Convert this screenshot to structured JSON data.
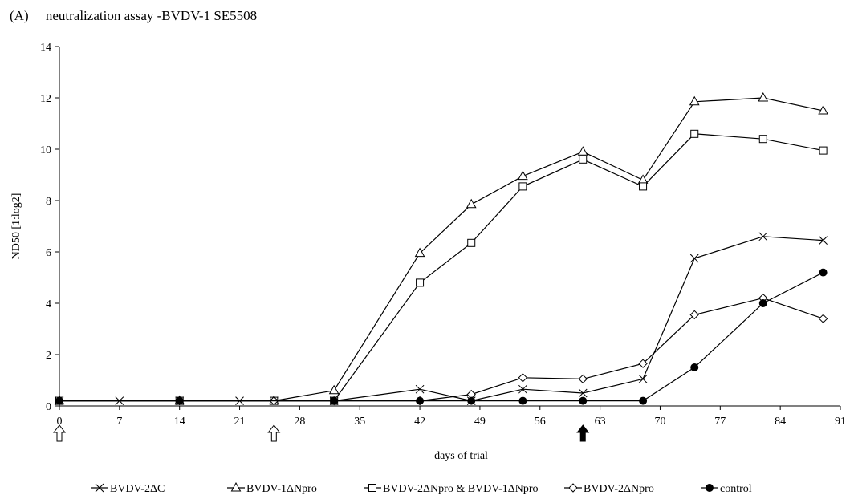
{
  "chart_data": {
    "type": "line",
    "panel_label": "(A)",
    "title": "neutralization assay -BVDV-1 SE5508",
    "xlabel": "days of trial",
    "ylabel": "ND50 [1:log2]",
    "xlim": [
      0,
      91
    ],
    "ylim": [
      0,
      14
    ],
    "xticks": [
      0,
      7,
      14,
      21,
      28,
      35,
      42,
      49,
      56,
      63,
      70,
      77,
      84,
      91
    ],
    "yticks": [
      0,
      2,
      4,
      6,
      8,
      10,
      12,
      14
    ],
    "grid": false,
    "legend_position": "bottom",
    "annotations": [
      {
        "type": "open-arrow-up",
        "x": 0
      },
      {
        "type": "open-arrow-up",
        "x": 25
      },
      {
        "type": "filled-arrow-up",
        "x": 61
      }
    ],
    "series": [
      {
        "name": "BVDV-2ΔC",
        "marker": "x",
        "points": [
          [
            0,
            0.2
          ],
          [
            7,
            0.2
          ],
          [
            14,
            0.2
          ],
          [
            21,
            0.2
          ],
          [
            25,
            0.2
          ],
          [
            32,
            0.2
          ],
          [
            42,
            0.65
          ],
          [
            48,
            0.2
          ],
          [
            54,
            0.65
          ],
          [
            61,
            0.5
          ],
          [
            68,
            1.05
          ],
          [
            74,
            5.75
          ],
          [
            82,
            6.6
          ],
          [
            89,
            6.45
          ]
        ]
      },
      {
        "name": "BVDV-1ΔNpro",
        "marker": "triangle",
        "points": [
          [
            0,
            0.2
          ],
          [
            14,
            0.2
          ],
          [
            25,
            0.2
          ],
          [
            32,
            0.6
          ],
          [
            42,
            5.95
          ],
          [
            48,
            7.85
          ],
          [
            54,
            8.95
          ],
          [
            61,
            9.9
          ],
          [
            68,
            8.8
          ],
          [
            74,
            11.85
          ],
          [
            82,
            12.0
          ],
          [
            89,
            11.5
          ]
        ]
      },
      {
        "name": "BVDV-2ΔNpro & BVDV-1ΔNpro",
        "marker": "square",
        "points": [
          [
            0,
            0.2
          ],
          [
            14,
            0.2
          ],
          [
            25,
            0.2
          ],
          [
            32,
            0.2
          ],
          [
            42,
            4.8
          ],
          [
            48,
            6.35
          ],
          [
            54,
            8.55
          ],
          [
            61,
            9.6
          ],
          [
            68,
            8.55
          ],
          [
            74,
            10.6
          ],
          [
            82,
            10.4
          ],
          [
            89,
            9.95
          ]
        ]
      },
      {
        "name": "BVDV-2ΔNpro",
        "marker": "diamond",
        "points": [
          [
            0,
            0.2
          ],
          [
            14,
            0.2
          ],
          [
            25,
            0.2
          ],
          [
            32,
            0.2
          ],
          [
            42,
            0.2
          ],
          [
            48,
            0.45
          ],
          [
            54,
            1.1
          ],
          [
            61,
            1.05
          ],
          [
            68,
            1.65
          ],
          [
            74,
            3.55
          ],
          [
            82,
            4.2
          ],
          [
            89,
            3.4
          ]
        ]
      },
      {
        "name": "control",
        "marker": "circle",
        "points": [
          [
            0,
            0.2
          ],
          [
            14,
            0.2
          ],
          [
            32,
            0.2
          ],
          [
            42,
            0.2
          ],
          [
            48,
            0.2
          ],
          [
            54,
            0.2
          ],
          [
            61,
            0.2
          ],
          [
            68,
            0.2
          ],
          [
            74,
            1.5
          ],
          [
            82,
            4.0
          ],
          [
            89,
            5.2
          ]
        ]
      }
    ]
  }
}
